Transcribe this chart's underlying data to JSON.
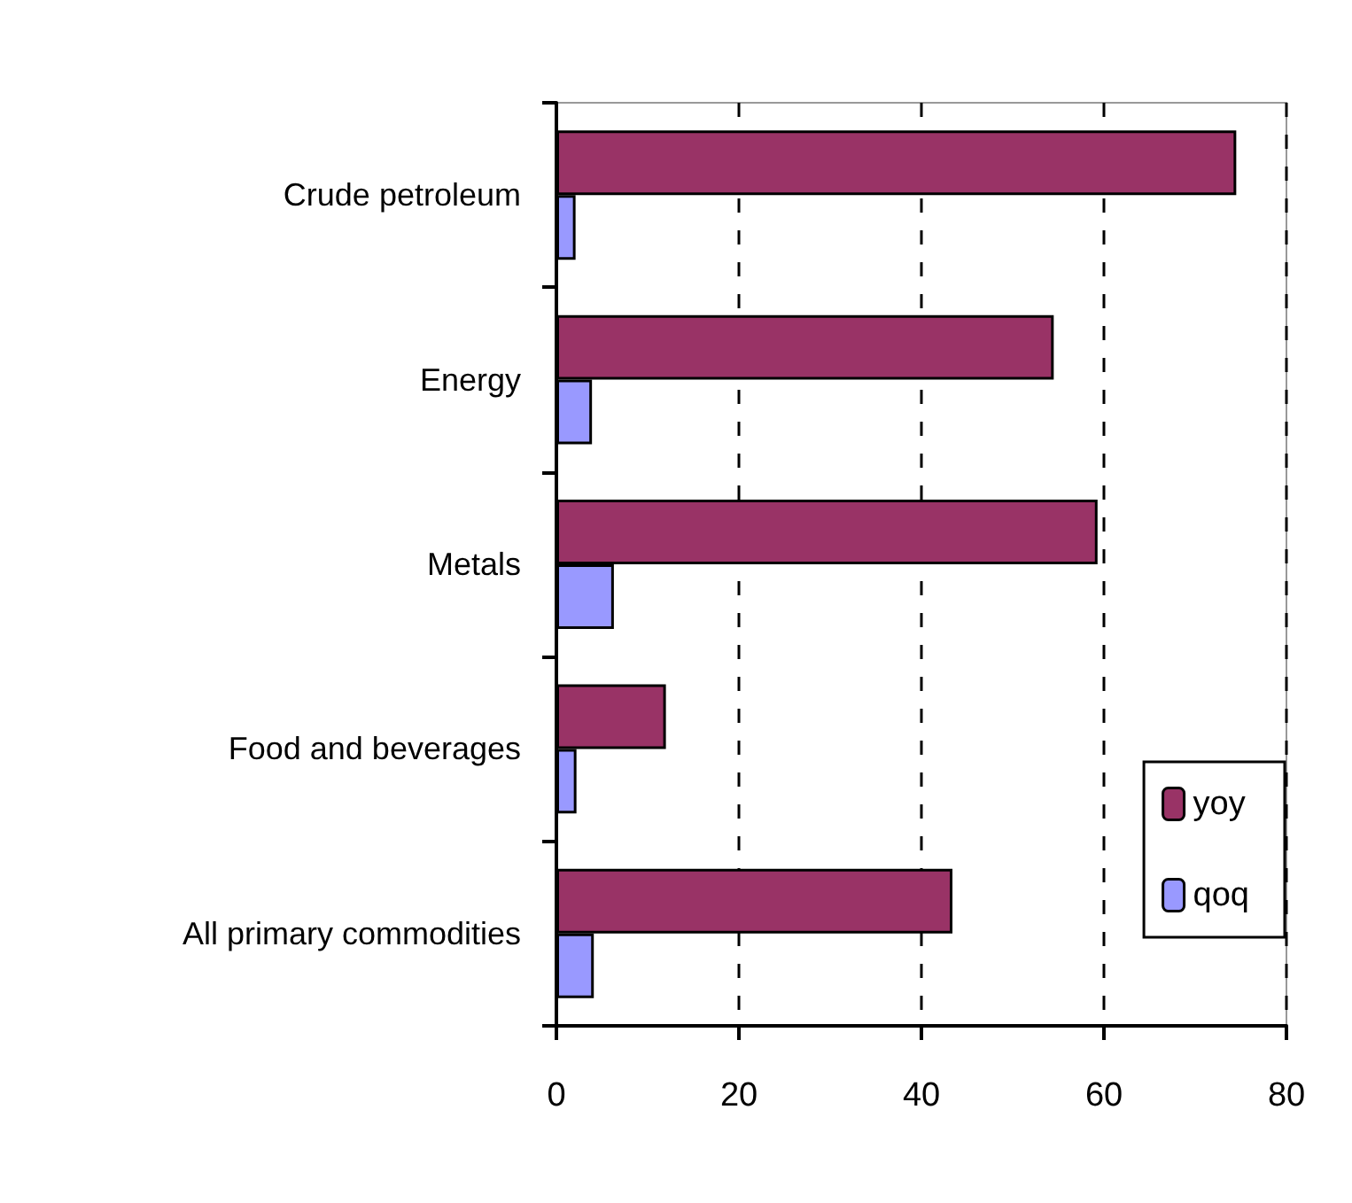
{
  "chart_data": {
    "type": "bar",
    "orientation": "horizontal",
    "categories": [
      "Crude petroleum",
      "Energy",
      "Metals",
      "Food and beverages",
      "All primary commodities"
    ],
    "series": [
      {
        "name": "yoy",
        "color": "#993366",
        "values": [
          74.5,
          54.5,
          59.3,
          12.0,
          43.4
        ]
      },
      {
        "name": "qoq",
        "color": "#9999ff",
        "values": [
          2.1,
          3.9,
          6.3,
          2.2,
          4.1
        ]
      }
    ],
    "xlim": [
      0,
      80
    ],
    "xticks": [
      0,
      20,
      40,
      60,
      80
    ],
    "grid": "x",
    "legend": "bottom right"
  }
}
